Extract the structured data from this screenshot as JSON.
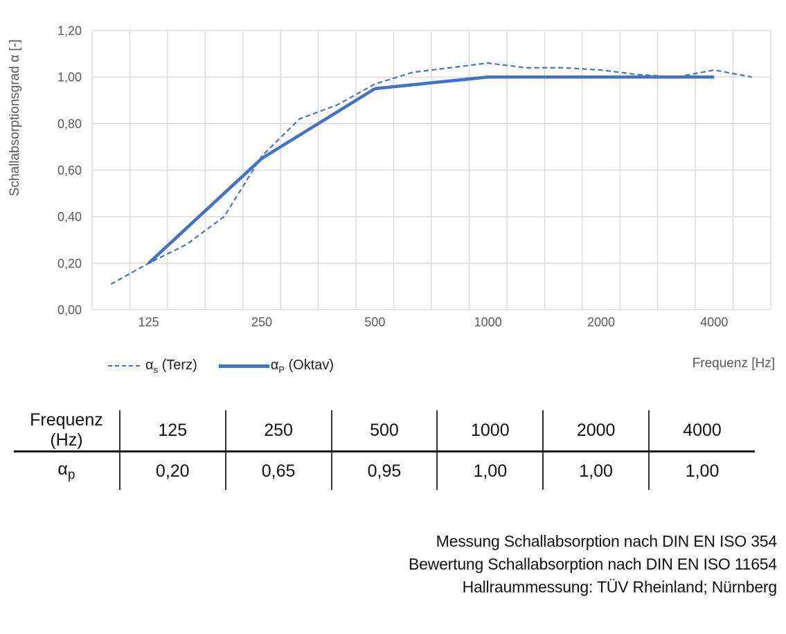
{
  "chart_data": {
    "type": "line",
    "title": "",
    "ylabel": "Schallabsorptionsgrad α [-]",
    "xlabel": "Frequenz [Hz]",
    "ylim": [
      0,
      1.2
    ],
    "y_tick_labels": [
      "0,00",
      "0,20",
      "0,40",
      "0,60",
      "0,80",
      "1,00",
      "1,20"
    ],
    "categories": [
      100,
      125,
      160,
      200,
      250,
      315,
      400,
      500,
      630,
      800,
      1000,
      1250,
      1600,
      2000,
      2500,
      3150,
      4000,
      5000
    ],
    "x_tick_labels": [
      "125",
      "250",
      "500",
      "1000",
      "2000",
      "4000"
    ],
    "grid": true,
    "legend_position": "bottom-left",
    "series": [
      {
        "name": "αs (Terz)",
        "style": "dashed",
        "color": "#4472C4",
        "x": [
          100,
          125,
          160,
          200,
          250,
          315,
          400,
          500,
          630,
          800,
          1000,
          1250,
          1600,
          2000,
          2500,
          3150,
          4000,
          5000
        ],
        "values": [
          0.11,
          0.2,
          0.28,
          0.4,
          0.66,
          0.82,
          0.88,
          0.97,
          1.02,
          1.04,
          1.06,
          1.04,
          1.04,
          1.03,
          1.01,
          1.0,
          1.03,
          1.0
        ]
      },
      {
        "name": "αP (Oktav)",
        "style": "solid",
        "color": "#4472C4",
        "x": [
          125,
          250,
          500,
          1000,
          2000,
          4000
        ],
        "values": [
          0.2,
          0.65,
          0.95,
          1.0,
          1.0,
          1.0
        ]
      }
    ]
  },
  "legend": {
    "items": [
      {
        "symbol": "α",
        "sub": "s",
        "rest": " (Terz)"
      },
      {
        "symbol": "α",
        "sub": "P",
        "rest": " (Oktav)"
      }
    ]
  },
  "table": {
    "header_label": "Frequenz (Hz)",
    "frequencies": [
      "125",
      "250",
      "500",
      "1000",
      "2000",
      "4000"
    ],
    "row_symbol": "α",
    "row_symbol_sub": "p",
    "alpha_p_values": [
      "0,20",
      "0,65",
      "0,95",
      "1,00",
      "1,00",
      "1,00"
    ]
  },
  "footer": {
    "lines": [
      "Messung Schallabsorption nach DIN EN ISO 354",
      "Bewertung Schallabsorption nach DIN EN ISO 11654",
      "Hallraummessung: TÜV Rheinland; Nürnberg"
    ]
  },
  "colors": {
    "series_blue": "#4472C4",
    "gridline": "#D9D9D9",
    "axis_text": "#595959",
    "table_line": "#1A1A1A"
  }
}
